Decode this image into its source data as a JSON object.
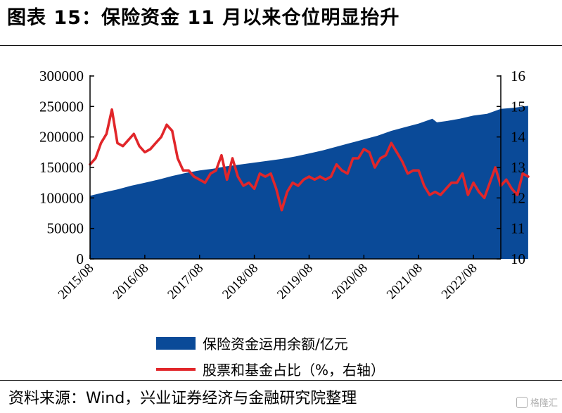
{
  "title": "图表 15：保险资金 11 月以来仓位明显抬升",
  "source": "资料来源：Wind，兴业证券经济与金融研究院整理",
  "watermark": "格隆汇",
  "colors": {
    "area": "#0a4a98",
    "line": "#e1262a"
  },
  "chart_data": {
    "type": "area+line",
    "x_start": "2015/08",
    "x_end": "2023/01",
    "x_ticks": [
      "2015/08",
      "2016/08",
      "2017/08",
      "2018/08",
      "2019/08",
      "2020/08",
      "2021/08",
      "2022/08"
    ],
    "y_left": {
      "ticks": [
        0,
        50000,
        100000,
        150000,
        200000,
        250000,
        300000
      ],
      "lim": [
        0,
        300000
      ]
    },
    "y_right": {
      "ticks": [
        10,
        11,
        12,
        13,
        14,
        15,
        16
      ],
      "lim": [
        10,
        16
      ]
    },
    "series": [
      {
        "name": "保险资金运用余额/亿元",
        "kind": "area",
        "axis": "left",
        "points": [
          [
            0,
            103500
          ],
          [
            3,
            109000
          ],
          [
            6,
            114000
          ],
          [
            9,
            120000
          ],
          [
            12,
            125000
          ],
          [
            15,
            130000
          ],
          [
            18,
            136000
          ],
          [
            21,
            141000
          ],
          [
            24,
            145000
          ],
          [
            27,
            148000
          ],
          [
            30,
            152000
          ],
          [
            33,
            155000
          ],
          [
            36,
            158000
          ],
          [
            39,
            161000
          ],
          [
            42,
            164000
          ],
          [
            45,
            168000
          ],
          [
            48,
            173000
          ],
          [
            51,
            178000
          ],
          [
            54,
            184000
          ],
          [
            57,
            190000
          ],
          [
            60,
            196000
          ],
          [
            63,
            202000
          ],
          [
            66,
            210000
          ],
          [
            69,
            216000
          ],
          [
            72,
            222000
          ],
          [
            75,
            230000
          ],
          [
            76,
            224000
          ],
          [
            78,
            226000
          ],
          [
            81,
            230000
          ],
          [
            84,
            235000
          ],
          [
            87,
            238000
          ],
          [
            90,
            246000
          ],
          [
            93,
            248000
          ],
          [
            95,
            250000
          ],
          [
            96,
            251000
          ]
        ]
      },
      {
        "name": "股票和基金占比（%，右轴）",
        "kind": "line",
        "axis": "right",
        "points": [
          [
            0,
            13.1
          ],
          [
            1,
            13.3
          ],
          [
            2,
            13.8
          ],
          [
            3,
            14.1
          ],
          [
            4,
            14.9
          ],
          [
            5,
            13.8
          ],
          [
            6,
            13.7
          ],
          [
            7,
            13.9
          ],
          [
            8,
            14.1
          ],
          [
            9,
            13.7
          ],
          [
            10,
            13.5
          ],
          [
            11,
            13.6
          ],
          [
            12,
            13.8
          ],
          [
            13,
            14.0
          ],
          [
            14,
            14.4
          ],
          [
            15,
            14.2
          ],
          [
            16,
            13.3
          ],
          [
            17,
            12.9
          ],
          [
            18,
            12.9
          ],
          [
            19,
            12.7
          ],
          [
            20,
            12.6
          ],
          [
            21,
            12.5
          ],
          [
            22,
            12.8
          ],
          [
            23,
            12.9
          ],
          [
            24,
            13.4
          ],
          [
            25,
            12.6
          ],
          [
            26,
            13.3
          ],
          [
            27,
            12.7
          ],
          [
            28,
            12.4
          ],
          [
            29,
            12.5
          ],
          [
            30,
            12.3
          ],
          [
            31,
            12.8
          ],
          [
            32,
            12.7
          ],
          [
            33,
            12.8
          ],
          [
            34,
            12.3
          ],
          [
            35,
            11.6
          ],
          [
            36,
            12.2
          ],
          [
            37,
            12.5
          ],
          [
            38,
            12.4
          ],
          [
            39,
            12.6
          ],
          [
            40,
            12.7
          ],
          [
            41,
            12.6
          ],
          [
            42,
            12.7
          ],
          [
            43,
            12.6
          ],
          [
            44,
            12.7
          ],
          [
            45,
            13.1
          ],
          [
            46,
            12.9
          ],
          [
            47,
            12.8
          ],
          [
            48,
            13.3
          ],
          [
            49,
            13.3
          ],
          [
            50,
            13.6
          ],
          [
            51,
            13.5
          ],
          [
            52,
            13.0
          ],
          [
            53,
            13.3
          ],
          [
            54,
            13.4
          ],
          [
            55,
            13.8
          ],
          [
            56,
            13.5
          ],
          [
            57,
            13.2
          ],
          [
            58,
            12.8
          ],
          [
            59,
            12.9
          ],
          [
            60,
            12.9
          ],
          [
            61,
            12.4
          ],
          [
            62,
            12.1
          ],
          [
            63,
            12.2
          ],
          [
            64,
            12.1
          ],
          [
            65,
            12.3
          ],
          [
            66,
            12.5
          ],
          [
            67,
            12.5
          ],
          [
            68,
            12.8
          ],
          [
            69,
            12.1
          ],
          [
            70,
            12.5
          ],
          [
            71,
            12.2
          ],
          [
            72,
            12.0
          ],
          [
            73,
            12.5
          ],
          [
            74,
            13.0
          ],
          [
            75,
            12.4
          ],
          [
            76,
            12.6
          ],
          [
            77,
            12.3
          ],
          [
            78,
            12.1
          ],
          [
            79,
            12.8
          ],
          [
            80,
            12.7
          ]
        ]
      }
    ]
  }
}
